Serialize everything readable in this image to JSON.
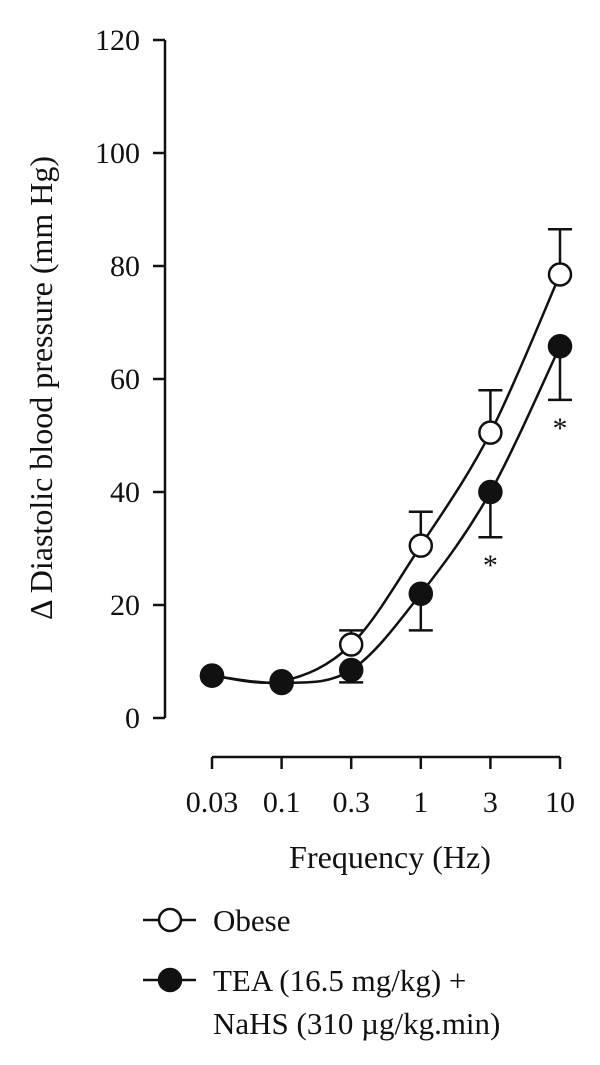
{
  "chart_data": {
    "type": "line",
    "title": "",
    "xlabel": "Frequency (Hz)",
    "ylabel": "Δ Diastolic blood pressure (mm Hg)",
    "categories": [
      "0.03",
      "0.1",
      "0.3",
      "1",
      "3",
      "10"
    ],
    "ylim": [
      0,
      120
    ],
    "yticks": [
      "0",
      "20",
      "40",
      "60",
      "80",
      "100",
      "120"
    ],
    "grid": false,
    "legend_position": "bottom",
    "series": [
      {
        "name": "Obese",
        "marker": "open-circle",
        "values": [
          7.5,
          6.5,
          13,
          30.5,
          50.5,
          78.5
        ],
        "errors": [
          0,
          0,
          2.5,
          6,
          7.5,
          8
        ],
        "color": "#111111"
      },
      {
        "name": "TEA (16.5 mg/kg) + NaHS (310 µg/kg.min)",
        "marker": "filled-circle",
        "values": [
          7.5,
          6.2,
          8.5,
          22,
          40,
          65.8
        ],
        "errors": [
          0,
          0,
          2.2,
          6.5,
          8,
          9.5
        ],
        "color": "#111111"
      }
    ],
    "annotations": [
      {
        "category": "3",
        "text": "*"
      },
      {
        "category": "10",
        "text": "*"
      }
    ]
  },
  "legend": {
    "items": [
      {
        "line1": "Obese",
        "line2": ""
      },
      {
        "line1": "TEA (16.5 mg/kg) +",
        "line2": "NaHS (310 µg/kg.min)"
      }
    ]
  }
}
